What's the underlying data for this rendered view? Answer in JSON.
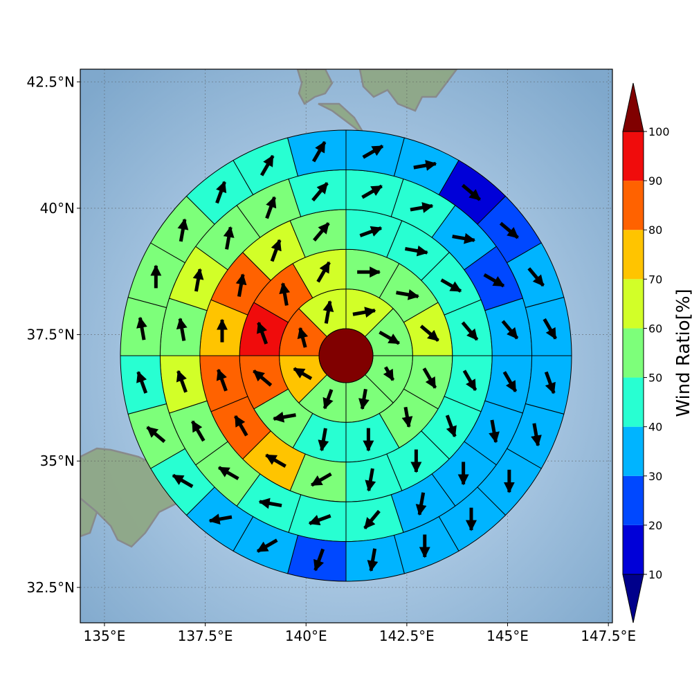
{
  "chart_data": {
    "type": "polar-sector-map",
    "colorbar_label": "Wind Ratio[%]",
    "colorbar_ticks": [
      10,
      20,
      30,
      40,
      50,
      60,
      70,
      80,
      90,
      100
    ],
    "colorbar_extend": "both",
    "colorscale": [
      {
        "from": null,
        "to": 10,
        "color": "#00008b"
      },
      {
        "from": 10,
        "to": 20,
        "color": "#0000d8"
      },
      {
        "from": 20,
        "to": 30,
        "color": "#0048ff"
      },
      {
        "from": 30,
        "to": 40,
        "color": "#00b4ff"
      },
      {
        "from": 40,
        "to": 50,
        "color": "#28ffd2"
      },
      {
        "from": 50,
        "to": 60,
        "color": "#7dff7a"
      },
      {
        "from": 60,
        "to": 70,
        "color": "#d2ff28"
      },
      {
        "from": 70,
        "to": 80,
        "color": "#ffc400"
      },
      {
        "from": 80,
        "to": 90,
        "color": "#ff6200"
      },
      {
        "from": 90,
        "to": 100,
        "color": "#f00c0c"
      },
      {
        "from": 100,
        "to": null,
        "color": "#800000"
      }
    ],
    "x_ticks": [
      "135°E",
      "137.5°E",
      "140°E",
      "142.5°E",
      "145°E",
      "147.5°E"
    ],
    "x_tick_values": [
      135,
      137.5,
      140,
      142.5,
      145,
      147.5
    ],
    "y_ticks": [
      "32.5°N",
      "35°N",
      "37.5°N",
      "40°N",
      "42.5°N"
    ],
    "y_tick_values": [
      32.5,
      35,
      37.5,
      40,
      42.5
    ],
    "lon_range": [
      134.4,
      147.6
    ],
    "lat_range": [
      31.8,
      42.75
    ],
    "grid": true,
    "center": {
      "lon": 141.0,
      "lat": 37.3,
      "value": 100
    },
    "rings": [
      {
        "ring": 1,
        "sectors": 8,
        "start_deg": 0,
        "values": [
          65,
          55,
          55,
          55,
          55,
          75,
          85,
          65
        ],
        "arrows": [
          {
            "dir": 80,
            "len": 0.9
          },
          {
            "dir": 120,
            "len": 0.9
          },
          {
            "dir": 150,
            "len": 0.6
          },
          {
            "dir": 190,
            "len": 0.8
          },
          {
            "dir": 200,
            "len": 0.8
          },
          {
            "dir": 300,
            "len": 0.8
          },
          {
            "dir": 345,
            "len": 0.8
          },
          {
            "dir": 10,
            "len": 0.9
          }
        ]
      },
      {
        "ring": 2,
        "sectors": 12,
        "start_deg": 0,
        "values": [
          55,
          55,
          65,
          55,
          55,
          45,
          45,
          55,
          85,
          95,
          85,
          65
        ],
        "arrows": [
          {
            "dir": 90,
            "len": 0.9
          },
          {
            "dir": 100,
            "len": 0.9
          },
          {
            "dir": 130,
            "len": 0.9
          },
          {
            "dir": 150,
            "len": 0.9
          },
          {
            "dir": 170,
            "len": 0.8
          },
          {
            "dir": 180,
            "len": 0.9
          },
          {
            "dir": 190,
            "len": 0.9
          },
          {
            "dir": 260,
            "len": 0.9
          },
          {
            "dir": 310,
            "len": 0.9
          },
          {
            "dir": 340,
            "len": 0.9
          },
          {
            "dir": 350,
            "len": 0.9
          },
          {
            "dir": 30,
            "len": 0.9
          }
        ]
      },
      {
        "ring": 3,
        "sectors": 16,
        "start_deg": 0,
        "values": [
          45,
          45,
          45,
          45,
          45,
          45,
          45,
          45,
          55,
          75,
          85,
          85,
          75,
          85,
          65,
          55
        ],
        "arrows": [
          {
            "dir": 70,
            "len": 0.9
          },
          {
            "dir": 100,
            "len": 0.9
          },
          {
            "dir": 120,
            "len": 0.9
          },
          {
            "dir": 140,
            "len": 0.9
          },
          {
            "dir": 150,
            "len": 0.9
          },
          {
            "dir": 160,
            "len": 0.9
          },
          {
            "dir": 180,
            "len": 0.9
          },
          {
            "dir": 190,
            "len": 0.9
          },
          {
            "dir": 240,
            "len": 0.9
          },
          {
            "dir": 300,
            "len": 0.9
          },
          {
            "dir": 330,
            "len": 0.9
          },
          {
            "dir": 340,
            "len": 0.9
          },
          {
            "dir": 0,
            "len": 0.9
          },
          {
            "dir": 10,
            "len": 0.9
          },
          {
            "dir": 20,
            "len": 0.9
          },
          {
            "dir": 40,
            "len": 0.9
          }
        ]
      },
      {
        "ring": 4,
        "sectors": 20,
        "start_deg": 0,
        "values": [
          45,
          45,
          35,
          25,
          35,
          35,
          35,
          35,
          35,
          45,
          45,
          45,
          55,
          55,
          65,
          55,
          65,
          55,
          55,
          45
        ],
        "arrows": [
          {
            "dir": 60,
            "len": 0.9
          },
          {
            "dir": 80,
            "len": 0.9
          },
          {
            "dir": 100,
            "len": 0.9
          },
          {
            "dir": 120,
            "len": 0.9
          },
          {
            "dir": 140,
            "len": 0.9
          },
          {
            "dir": 150,
            "len": 0.9
          },
          {
            "dir": 170,
            "len": 0.9
          },
          {
            "dir": 180,
            "len": 0.9
          },
          {
            "dir": 190,
            "len": 0.9
          },
          {
            "dir": 220,
            "len": 0.9
          },
          {
            "dir": 250,
            "len": 0.9
          },
          {
            "dir": 280,
            "len": 0.9
          },
          {
            "dir": 300,
            "len": 0.9
          },
          {
            "dir": 330,
            "len": 0.9
          },
          {
            "dir": 340,
            "len": 0.9
          },
          {
            "dir": 350,
            "len": 0.9
          },
          {
            "dir": 10,
            "len": 0.9
          },
          {
            "dir": 10,
            "len": 0.9
          },
          {
            "dir": 20,
            "len": 0.9
          },
          {
            "dir": 40,
            "len": 0.9
          }
        ]
      },
      {
        "ring": 5,
        "sectors": 24,
        "start_deg": 0,
        "values": [
          35,
          35,
          15,
          25,
          35,
          35,
          35,
          35,
          35,
          35,
          35,
          35,
          25,
          35,
          35,
          45,
          55,
          45,
          55,
          55,
          55,
          45,
          45,
          35
        ],
        "arrows": [
          {
            "dir": 60,
            "len": 0.9
          },
          {
            "dir": 80,
            "len": 0.9
          },
          {
            "dir": 130,
            "len": 0.9
          },
          {
            "dir": 130,
            "len": 0.9
          },
          {
            "dir": 140,
            "len": 0.9
          },
          {
            "dir": 150,
            "len": 0.9
          },
          {
            "dir": 160,
            "len": 0.9
          },
          {
            "dir": 170,
            "len": 0.9
          },
          {
            "dir": 180,
            "len": 0.9
          },
          {
            "dir": 180,
            "len": 0.9
          },
          {
            "dir": 180,
            "len": 0.9
          },
          {
            "dir": 190,
            "len": 0.9
          },
          {
            "dir": 200,
            "len": 0.9
          },
          {
            "dir": 240,
            "len": 0.9
          },
          {
            "dir": 260,
            "len": 0.9
          },
          {
            "dir": 300,
            "len": 0.9
          },
          {
            "dir": 310,
            "len": 0.9
          },
          {
            "dir": 340,
            "len": 0.9
          },
          {
            "dir": 350,
            "len": 0.9
          },
          {
            "dir": 0,
            "len": 0.9
          },
          {
            "dir": 10,
            "len": 0.9
          },
          {
            "dir": 20,
            "len": 0.9
          },
          {
            "dir": 30,
            "len": 0.9
          },
          {
            "dir": 30,
            "len": 0.9
          }
        ]
      }
    ]
  }
}
